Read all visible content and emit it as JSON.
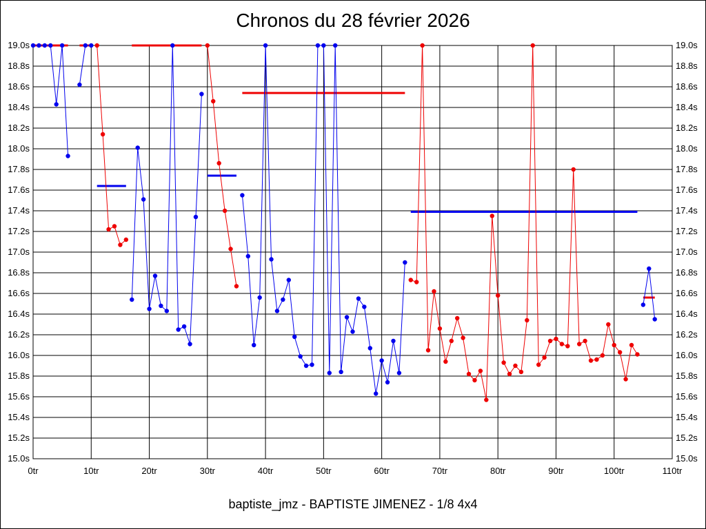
{
  "colors": {
    "blue": "#0000ee",
    "red": "#ee0000",
    "grid": "#000000",
    "background": "#ffffff"
  },
  "chart_data": {
    "type": "line",
    "title": "Chronos du 28 février 2026",
    "subtitle": "baptiste_jmz - BAPTISTE JIMENEZ - 1/8 4x4",
    "xlabel": "",
    "ylabel": "",
    "xlim": [
      0,
      110
    ],
    "ylim": [
      15.0,
      19.0
    ],
    "grid": true,
    "y_axis_both_sides": true,
    "x_tick_labels": [
      "0tr",
      "10tr",
      "20tr",
      "30tr",
      "40tr",
      "50tr",
      "60tr",
      "70tr",
      "80tr",
      "90tr",
      "100tr",
      "110tr"
    ],
    "y_tick_labels": [
      "15.0s",
      "15.2s",
      "15.4s",
      "15.6s",
      "15.8s",
      "16.0s",
      "16.2s",
      "16.4s",
      "16.6s",
      "16.8s",
      "17.0s",
      "17.2s",
      "17.4s",
      "17.6s",
      "17.8s",
      "18.0s",
      "18.2s",
      "18.4s",
      "18.6s",
      "18.8s",
      "19.0s"
    ],
    "series": [
      {
        "color": "blue",
        "points": [
          [
            0,
            19.0
          ],
          [
            1,
            19.0
          ],
          [
            2,
            19.0
          ],
          [
            3,
            19.0
          ],
          [
            4,
            18.43
          ],
          [
            5,
            19.0
          ],
          [
            6,
            17.93
          ]
        ]
      },
      {
        "color": "blue",
        "points": [
          [
            8,
            18.62
          ],
          [
            9,
            19.0
          ],
          [
            10,
            19.0
          ]
        ]
      },
      {
        "color": "red",
        "points": [
          [
            11,
            19.0
          ],
          [
            12,
            18.14
          ],
          [
            13,
            17.22
          ],
          [
            14,
            17.25
          ],
          [
            15,
            17.07
          ],
          [
            16,
            17.12
          ]
        ]
      },
      {
        "color": "blue",
        "points": [
          [
            17,
            16.54
          ],
          [
            18,
            18.01
          ],
          [
            19,
            17.51
          ],
          [
            20,
            16.45
          ],
          [
            21,
            16.77
          ],
          [
            22,
            16.48
          ],
          [
            23,
            16.43
          ],
          [
            24,
            19.0
          ],
          [
            25,
            16.25
          ],
          [
            26,
            16.28
          ],
          [
            27,
            16.11
          ],
          [
            28,
            17.34
          ],
          [
            29,
            18.53
          ]
        ]
      },
      {
        "color": "red",
        "points": [
          [
            30,
            19.0
          ],
          [
            31,
            18.46
          ],
          [
            32,
            17.86
          ],
          [
            33,
            17.4
          ],
          [
            34,
            17.03
          ],
          [
            35,
            16.67
          ]
        ]
      },
      {
        "color": "blue",
        "points": [
          [
            36,
            17.55
          ],
          [
            37,
            16.96
          ],
          [
            38,
            16.1
          ],
          [
            39,
            16.56
          ],
          [
            40,
            19.0
          ],
          [
            41,
            16.93
          ],
          [
            42,
            16.43
          ],
          [
            43,
            16.54
          ],
          [
            44,
            16.73
          ],
          [
            45,
            16.18
          ],
          [
            46,
            15.99
          ],
          [
            47,
            15.9
          ],
          [
            48,
            15.91
          ],
          [
            49,
            19.0
          ],
          [
            50,
            19.0
          ],
          [
            51,
            15.83
          ],
          [
            52,
            19.0
          ],
          [
            53,
            15.84
          ],
          [
            54,
            16.37
          ],
          [
            55,
            16.23
          ],
          [
            56,
            16.55
          ],
          [
            57,
            16.47
          ],
          [
            58,
            16.07
          ],
          [
            59,
            15.63
          ],
          [
            60,
            15.95
          ],
          [
            61,
            15.74
          ],
          [
            62,
            16.14
          ],
          [
            63,
            15.83
          ],
          [
            64,
            16.9
          ]
        ]
      },
      {
        "color": "red",
        "points": [
          [
            65,
            16.73
          ],
          [
            66,
            16.71
          ],
          [
            67,
            19.0
          ],
          [
            68,
            16.05
          ],
          [
            69,
            16.62
          ],
          [
            70,
            16.26
          ],
          [
            71,
            15.94
          ],
          [
            72,
            16.14
          ],
          [
            73,
            16.36
          ],
          [
            74,
            16.17
          ],
          [
            75,
            15.82
          ],
          [
            76,
            15.76
          ],
          [
            77,
            15.85
          ],
          [
            78,
            15.57
          ],
          [
            79,
            17.35
          ],
          [
            80,
            16.58
          ],
          [
            81,
            15.93
          ],
          [
            82,
            15.82
          ],
          [
            83,
            15.9
          ],
          [
            84,
            15.84
          ],
          [
            85,
            16.34
          ],
          [
            86,
            19.0
          ],
          [
            87,
            15.91
          ],
          [
            88,
            15.98
          ],
          [
            89,
            16.14
          ],
          [
            90,
            16.16
          ],
          [
            91,
            16.11
          ],
          [
            92,
            16.09
          ],
          [
            93,
            17.8
          ],
          [
            94,
            16.11
          ],
          [
            95,
            16.14
          ],
          [
            96,
            15.95
          ],
          [
            97,
            15.96
          ],
          [
            98,
            16.0
          ],
          [
            99,
            16.3
          ],
          [
            100,
            16.1
          ],
          [
            101,
            16.03
          ],
          [
            102,
            15.77
          ],
          [
            103,
            16.1
          ],
          [
            104,
            16.01
          ]
        ]
      },
      {
        "color": "blue",
        "points": [
          [
            105,
            16.49
          ],
          [
            106,
            16.84
          ],
          [
            107,
            16.35
          ]
        ]
      }
    ],
    "averages": [
      {
        "color": "red",
        "x": [
          0,
          6
        ],
        "y": 19.0
      },
      {
        "color": "red",
        "x": [
          8,
          10
        ],
        "y": 19.0
      },
      {
        "color": "blue",
        "x": [
          11,
          16
        ],
        "y": 17.64
      },
      {
        "color": "red",
        "x": [
          17,
          29
        ],
        "y": 19.0
      },
      {
        "color": "blue",
        "x": [
          30,
          35
        ],
        "y": 17.74
      },
      {
        "color": "red",
        "x": [
          36,
          64
        ],
        "y": 18.54
      },
      {
        "color": "blue",
        "x": [
          65,
          104
        ],
        "y": 17.39
      },
      {
        "color": "red",
        "x": [
          105,
          107
        ],
        "y": 16.56
      }
    ]
  }
}
